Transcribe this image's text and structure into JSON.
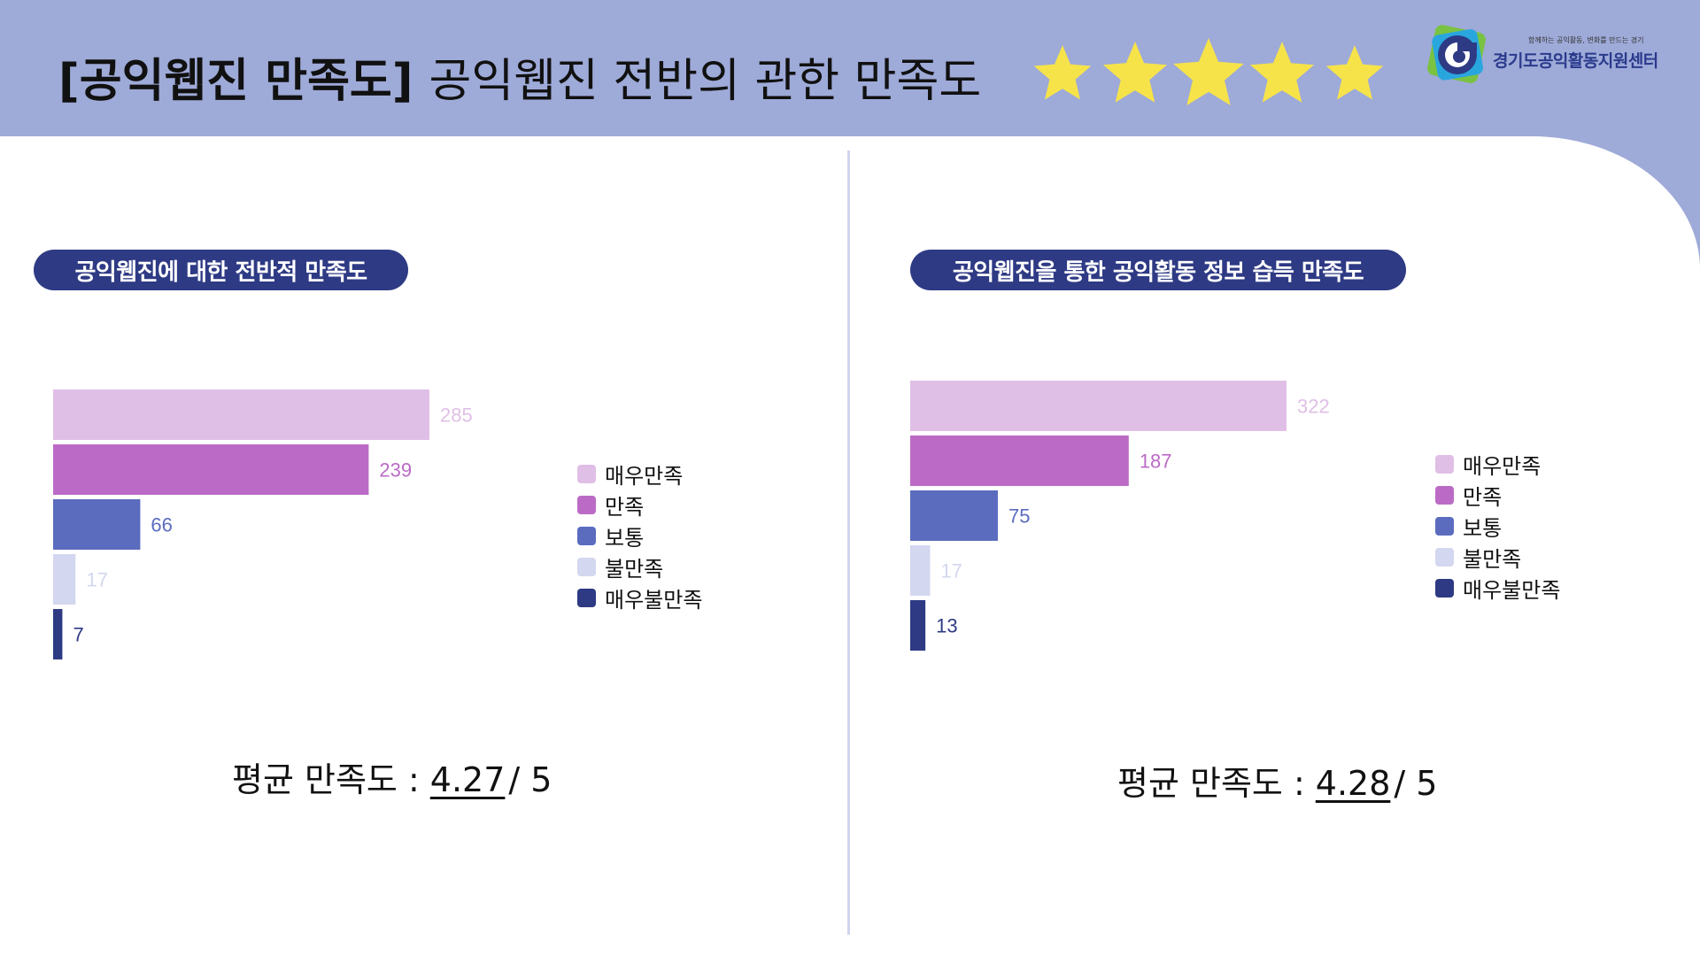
{
  "header": {
    "title_bold": "[공익웹진 만족도]",
    "title_main": "공익웹진 전반의 관한 만족도",
    "star_count": 5,
    "star_color": "#f6e34a",
    "band_color": "#9eaad8"
  },
  "logo": {
    "tagline": "함께하는 공익활동, 변화를 만드는 경기",
    "name": "경기도공익활동지원센터",
    "icon": "logo-mark-icon"
  },
  "colors": {
    "매우만족": "#e0bfe6",
    "만족": "#bb6bc6",
    "보통": "#5b6cbf",
    "불만족": "#d3d7ef",
    "매우불만족": "#2e3a84"
  },
  "panels": [
    {
      "pill_label": "공익웹진에 대한 전반적 만족도",
      "avg_label": "평균 만족도 :",
      "avg_value": "4.27",
      "avg_suffix": "/ 5",
      "legend": [
        "매우만족",
        "만족",
        "보통",
        "불만족",
        "매우불만족"
      ]
    },
    {
      "pill_label": "공익웹진을 통한 공익활동 정보 습득 만족도",
      "avg_label": "평균 만족도 :",
      "avg_value": "4.28",
      "avg_suffix": "/ 5",
      "legend": [
        "매우만족",
        "만족",
        "보통",
        "불만족",
        "매우불만족"
      ]
    }
  ],
  "chart_data": [
    {
      "type": "bar",
      "orientation": "horizontal",
      "title": "공익웹진에 대한 전반적 만족도",
      "categories": [
        "매우만족",
        "만족",
        "보통",
        "불만족",
        "매우불만족"
      ],
      "values": [
        285,
        239,
        66,
        17,
        7
      ],
      "colors": [
        "#e0bfe6",
        "#bb6bc6",
        "#5b6cbf",
        "#d3d7ef",
        "#2e3a84"
      ],
      "label_colors": [
        "#e0bfe6",
        "#bb6bc6",
        "#5b6cbf",
        "#d3d7ef",
        "#2e3a84"
      ],
      "xlim": [
        0,
        285
      ],
      "legend_position": "right",
      "grid": false
    },
    {
      "type": "bar",
      "orientation": "horizontal",
      "title": "공익웹진을 통한 공익활동 정보 습득 만족도",
      "categories": [
        "매우만족",
        "만족",
        "보통",
        "불만족",
        "매우불만족"
      ],
      "values": [
        322,
        187,
        75,
        17,
        13
      ],
      "colors": [
        "#e0bfe6",
        "#bb6bc6",
        "#5b6cbf",
        "#d3d7ef",
        "#2e3a84"
      ],
      "label_colors": [
        "#e0bfe6",
        "#bb6bc6",
        "#5b6cbf",
        "#d3d7ef",
        "#2e3a84"
      ],
      "xlim": [
        0,
        322
      ],
      "legend_position": "right",
      "grid": false
    }
  ]
}
